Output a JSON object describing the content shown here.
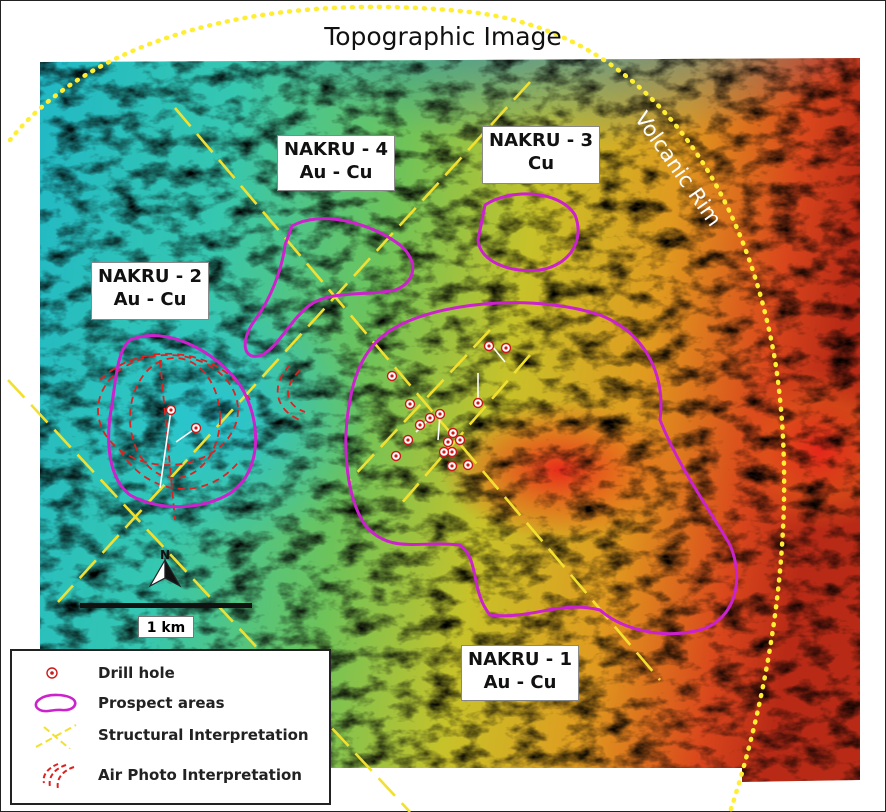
{
  "title": "Topographic Image",
  "rim_label": "Volcanic Rim",
  "prospects": [
    {
      "name": "NAKRU - 4",
      "metals": "Au - Cu"
    },
    {
      "name": "NAKRU - 3",
      "metals": "Cu"
    },
    {
      "name": "NAKRU - 2",
      "metals": "Au - Cu"
    },
    {
      "name": "NAKRU - 1",
      "metals": "Au - Cu"
    }
  ],
  "north_label": "N",
  "scale_bar": "1 km",
  "legend": [
    {
      "label": "Drill hole",
      "icon": "drill-hole-icon"
    },
    {
      "label": "Prospect areas",
      "icon": "prospect-area-icon"
    },
    {
      "label": "Structural Interpretation",
      "icon": "structural-line-icon"
    },
    {
      "label": "Air Photo Interpretation",
      "icon": "air-photo-line-icon"
    }
  ],
  "colors": {
    "prospect_outline": "#cc22cc",
    "structure": "#f0e030",
    "air_photo": "#dd2222",
    "rim": "#ffee33"
  }
}
